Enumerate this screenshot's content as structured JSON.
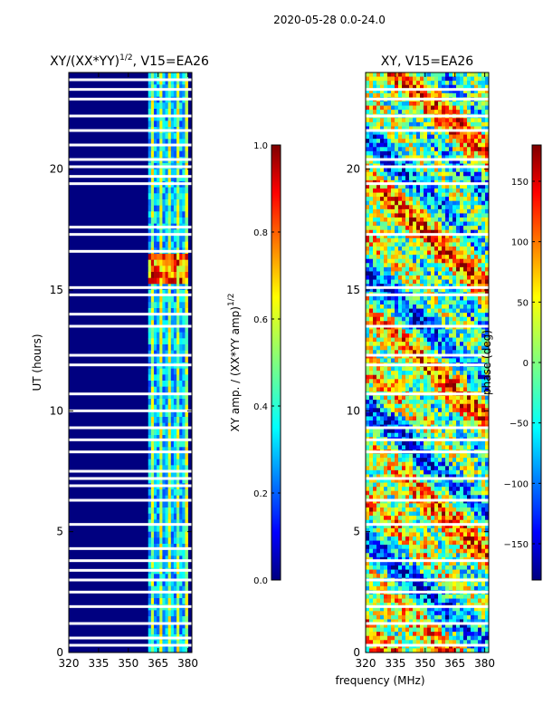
{
  "suptitle": "2020-05-28 0.0-24.0",
  "shared_xlabel": "frequency (MHz)",
  "colors": {
    "background": "#000080",
    "band_low": "#0a3cff",
    "band_mid": "#00d2ff",
    "band_high": "#7dff7a",
    "band_peak": "#ff5a00",
    "jet": [
      "#00007f",
      "#0000ff",
      "#007fff",
      "#00ffff",
      "#7fff7f",
      "#ffff00",
      "#ff7f00",
      "#ff0000",
      "#7f0000"
    ]
  },
  "chart_data": [
    {
      "type": "heatmap",
      "title_base": "XY/(XX*YY)",
      "title_sup": "1/2",
      "title_suffix": ", V15=EA26",
      "xlabel": "",
      "ylabel": "UT (hours)",
      "xlim": [
        320,
        382
      ],
      "ylim": [
        0,
        24
      ],
      "xticks": [
        320,
        335,
        350,
        365,
        380
      ],
      "xtick_labels": [
        "320",
        "335",
        "350",
        "365",
        "380"
      ],
      "yticks": [
        0,
        5,
        10,
        15,
        20
      ],
      "ytick_labels": [
        "0",
        "5",
        "10",
        "15",
        "20"
      ],
      "colorbar": {
        "label_base": "XY amp. / (XX*YY amp)",
        "label_sup": "1/2",
        "range": [
          0.0,
          1.0
        ],
        "ticks": [
          0.0,
          0.2,
          0.4,
          0.6,
          0.8,
          1.0
        ],
        "tick_labels": [
          "0.0",
          "0.2",
          "0.4",
          "0.6",
          "0.8",
          "1.0"
        ]
      },
      "active_band_mhz": [
        360,
        380
      ],
      "high_amp_window_hours": [
        15.2,
        16.6
      ],
      "gap_hours": [
        0.3,
        0.6,
        1.2,
        1.9,
        2.5,
        3.0,
        3.4,
        3.8,
        4.3,
        5.3,
        6.3,
        6.9,
        7.2,
        7.5,
        8.3,
        8.8,
        9.3,
        10.0,
        10.7,
        11.9,
        12.3,
        13.5,
        14.0,
        14.8,
        15.1,
        16.6,
        17.3,
        17.6,
        19.4,
        19.7,
        20.1,
        20.4,
        21.0,
        21.6,
        22.2,
        22.9,
        23.3,
        23.7
      ]
    },
    {
      "type": "heatmap",
      "title_base": "XY, V15=EA26",
      "xlabel": "frequency (MHz)",
      "ylabel": "",
      "xlim": [
        320,
        382
      ],
      "ylim": [
        0,
        24
      ],
      "xticks": [
        320,
        335,
        350,
        365,
        380
      ],
      "xtick_labels": [
        "320",
        "335",
        "350",
        "365",
        "380"
      ],
      "yticks": [
        0,
        5,
        10,
        15,
        20
      ],
      "ytick_labels": [
        "0",
        "5",
        "10",
        "15",
        "20"
      ],
      "colorbar": {
        "label": "phase (deg)",
        "range": [
          -180,
          180
        ],
        "ticks": [
          -150,
          -100,
          -50,
          0,
          50,
          100,
          150
        ],
        "tick_labels": [
          "−150",
          "−100",
          "−50",
          "0",
          "50",
          "100",
          "150"
        ]
      },
      "gap_hours": [
        0.3,
        1.2,
        1.9,
        2.5,
        3.0,
        3.8,
        5.3,
        6.3,
        7.2,
        8.3,
        8.8,
        9.3,
        10.7,
        11.9,
        12.3,
        13.5,
        14.8,
        15.1,
        17.3,
        19.4,
        20.1,
        20.4,
        21.6,
        22.2,
        22.9,
        23.3
      ]
    }
  ]
}
